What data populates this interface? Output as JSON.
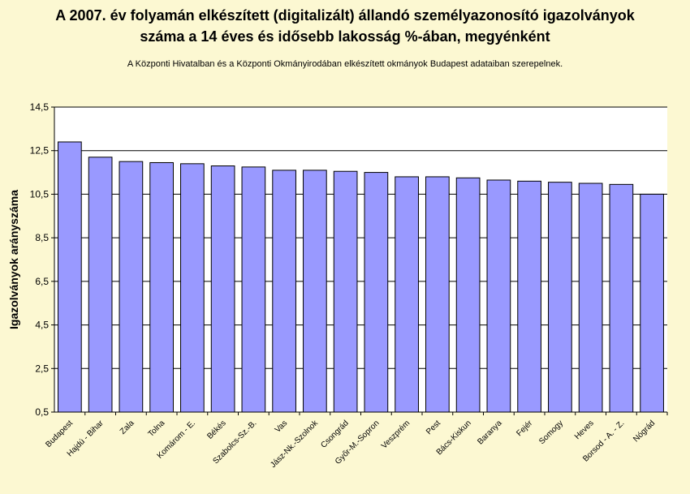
{
  "chart_data": {
    "type": "bar",
    "title_line1": "A 2007. év folyamán elkészített (digitalizált) állandó személyazonosító igazolványok",
    "title_line2": "száma a 14 éves és idősebb lakosság %-ában, megyénként",
    "subtitle": "A  Központi Hivatalban és a Központi Okmányirodában elkészített  okmányok Budapest adataiban szerepelnek.",
    "ylabel": "Igazolványok arányszáma",
    "xlabel": "",
    "ylim": [
      0.5,
      14.5
    ],
    "yticks": [
      "0,5",
      "2,5",
      "4,5",
      "6,5",
      "8,5",
      "10,5",
      "12,5",
      "14,5"
    ],
    "ytick_values": [
      0.5,
      2.5,
      4.5,
      6.5,
      8.5,
      10.5,
      12.5,
      14.5
    ],
    "grid": true,
    "bar_color": "#9999ff",
    "plot_background": "#ffffff",
    "page_background": "#fcf8d2",
    "categories": [
      "Budapest",
      "Hajdú - Bihar",
      "Zala",
      "Tolna",
      "Komárom - E.",
      "Békés",
      "Szabolcs-Sz.-B.",
      "Vas",
      "Jász-Nk.-Szolnok",
      "Csongrád",
      "Győr-M.-Sopron",
      "Veszprém",
      "Pest",
      "Bács-Kiskun",
      "Baranya",
      "Fejér",
      "Somogy",
      "Heves",
      "Borsod - A. - Z.",
      "Nógrád"
    ],
    "values": [
      12.9,
      12.2,
      12.0,
      11.95,
      11.9,
      11.8,
      11.75,
      11.6,
      11.6,
      11.55,
      11.5,
      11.3,
      11.3,
      11.25,
      11.15,
      11.1,
      11.05,
      11.0,
      10.95,
      10.5
    ]
  }
}
